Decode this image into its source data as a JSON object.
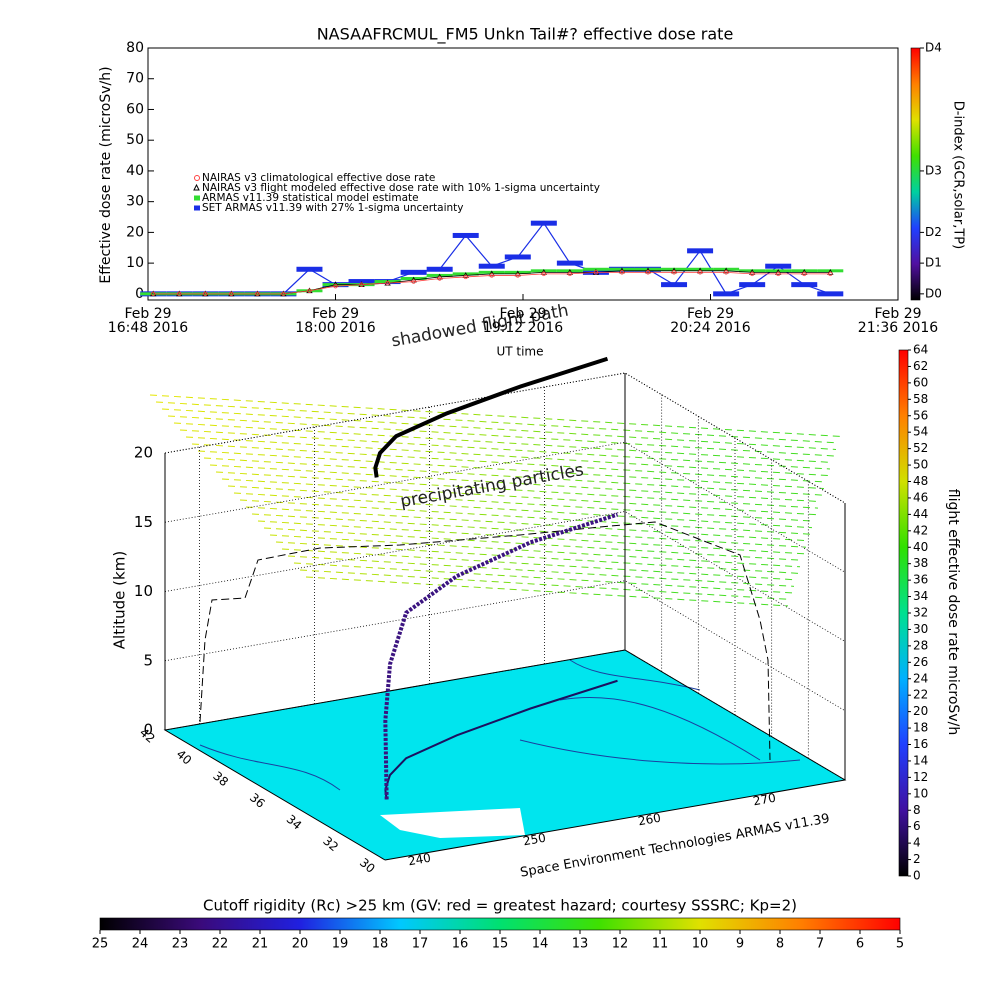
{
  "chart_data": [
    {
      "type": "line",
      "title": "NASAAFRCMUL_FM5 Unkn Tail#? effective dose rate",
      "xlabel": "UT time",
      "ylabel": "Effective dose rate (microSv/h)",
      "x": [
        "16:50",
        "17:00",
        "17:10",
        "17:20",
        "17:30",
        "17:40",
        "17:50",
        "18:00",
        "18:10",
        "18:20",
        "18:30",
        "18:40",
        "18:50",
        "19:00",
        "19:10",
        "19:20",
        "19:30",
        "19:40",
        "19:50",
        "20:00",
        "20:10",
        "20:20",
        "20:30",
        "20:40",
        "20:50",
        "21:00",
        "21:10"
      ],
      "xlim": [
        "16:48",
        "21:36"
      ],
      "xticks": [
        {
          "value": "16:48",
          "label": [
            "Feb 29",
            "16:48 2016"
          ]
        },
        {
          "value": "18:00",
          "label": [
            "Feb 29",
            "18:00 2016"
          ]
        },
        {
          "value": "19:12",
          "label": [
            "Feb 29",
            "19:12 2016"
          ]
        },
        {
          "value": "20:24",
          "label": [
            "Feb 29",
            "20:24 2016"
          ]
        },
        {
          "value": "21:36",
          "label": [
            "Feb 29",
            "21:36 2016"
          ]
        }
      ],
      "ylim": [
        -2,
        80
      ],
      "yticks": [
        0,
        10,
        20,
        30,
        40,
        50,
        60,
        70,
        80
      ],
      "series": [
        {
          "name": "NAIRAS v3 climatological effective dose rate",
          "color": "#ff4040",
          "marker": "circle",
          "values": [
            0,
            0,
            0,
            0,
            0,
            0,
            1,
            2.5,
            3,
            3.5,
            4,
            5,
            5.5,
            6,
            6,
            6.5,
            6.5,
            7,
            7,
            7,
            7,
            7,
            7,
            6.5,
            6.5,
            6.5,
            6.5
          ]
        },
        {
          "name": "NAIRAS v3 flight modeled effective dose rate with 10% 1-sigma uncertainty",
          "color": "#000000",
          "marker": "triangle",
          "values": [
            0,
            0,
            0,
            0,
            0,
            0,
            1,
            3,
            3,
            3.5,
            4.5,
            5.5,
            6,
            6.5,
            6.5,
            7,
            7,
            7,
            7.5,
            7.5,
            7.5,
            7.5,
            7.5,
            7,
            7,
            7,
            7
          ]
        },
        {
          "name": "ARMAS v11.39 statistical model estimate",
          "color": "#33dd33",
          "marker": "bar",
          "values": [
            0,
            0,
            0,
            0,
            0,
            0,
            1,
            3,
            3,
            4,
            5,
            6,
            6.5,
            7,
            7,
            7.5,
            7.5,
            8,
            8,
            8,
            8,
            8,
            8,
            7.5,
            7.5,
            7.5,
            7.5
          ]
        },
        {
          "name": "SET ARMAS v11.39 with 27% 1-sigma uncertainty",
          "color": "#1a2ee6",
          "marker": "bar",
          "values": [
            0,
            0,
            0,
            0,
            0,
            0,
            8,
            3,
            4,
            4,
            7,
            8,
            19,
            9,
            12,
            23,
            10,
            7,
            8,
            8,
            3,
            14,
            0,
            3,
            9,
            3,
            0
          ]
        }
      ],
      "y2label": "D-index (GCR,solar,TP)",
      "y2lim": [
        -2,
        80
      ],
      "y2ticks": [
        {
          "value": 0,
          "label": "D0"
        },
        {
          "value": 10,
          "label": "D1"
        },
        {
          "value": 20,
          "label": "D2"
        },
        {
          "value": 40,
          "label": "D3"
        },
        {
          "value": 80,
          "label": "D4"
        }
      ],
      "y2colors": [
        "#000000",
        "#5010a0",
        "#2040ff",
        "#00d0a0",
        "#40e000",
        "#e0e000",
        "#ff8000",
        "#ff0000"
      ]
    },
    {
      "type": "flight3d",
      "zlabel": "Altitude (km)",
      "zlim": [
        0,
        20
      ],
      "zticks": [
        0,
        5,
        10,
        15,
        20
      ],
      "latlim": [
        30,
        42
      ],
      "latticks": [
        42,
        40,
        38,
        36,
        34,
        32,
        30
      ],
      "lonlim": [
        237,
        277
      ],
      "lonticks": [
        240,
        250,
        260,
        270
      ],
      "annotations": [
        "shadowed flight path",
        "precipitating particles"
      ],
      "credit": "Space Environment Technologies ARMAS v11.39",
      "lon": [
        244,
        245,
        247,
        250,
        256,
        264,
        273
      ],
      "lat": [
        34.3,
        35,
        36,
        37,
        38,
        39,
        39.9
      ],
      "alt": [
        0,
        5,
        8,
        10.5,
        11.5,
        12,
        12
      ],
      "color": "#3b1480",
      "ground_color": "#00e5ee"
    },
    {
      "type": "colorbar",
      "label": "flight effective dose rate microSv/h",
      "lim": [
        0,
        64
      ],
      "ticks": [
        0,
        2,
        4,
        6,
        8,
        10,
        12,
        14,
        16,
        18,
        20,
        22,
        24,
        26,
        28,
        30,
        32,
        34,
        36,
        38,
        40,
        42,
        44,
        46,
        48,
        50,
        52,
        54,
        56,
        58,
        60,
        62,
        64
      ],
      "colors": [
        "#000000",
        "#4010a0",
        "#2040ff",
        "#00b0ff",
        "#00e090",
        "#30e000",
        "#d0e000",
        "#ff8000",
        "#ff0000"
      ]
    },
    {
      "type": "colorbar",
      "title": "Cutoff rigidity (Rc) >25 km (GV: red = greatest hazard; courtesy SSSRC; Kp=2)",
      "lim": [
        25,
        5
      ],
      "ticks": [
        25,
        24,
        23,
        22,
        21,
        20,
        19,
        18,
        17,
        16,
        15,
        14,
        13,
        12,
        11,
        10,
        9,
        8,
        7,
        6,
        5
      ],
      "colors": [
        "#000000",
        "#3a0a7a",
        "#2020e0",
        "#00c8ff",
        "#00e070",
        "#40e000",
        "#e0e000",
        "#ff8000",
        "#ff0000"
      ]
    }
  ]
}
